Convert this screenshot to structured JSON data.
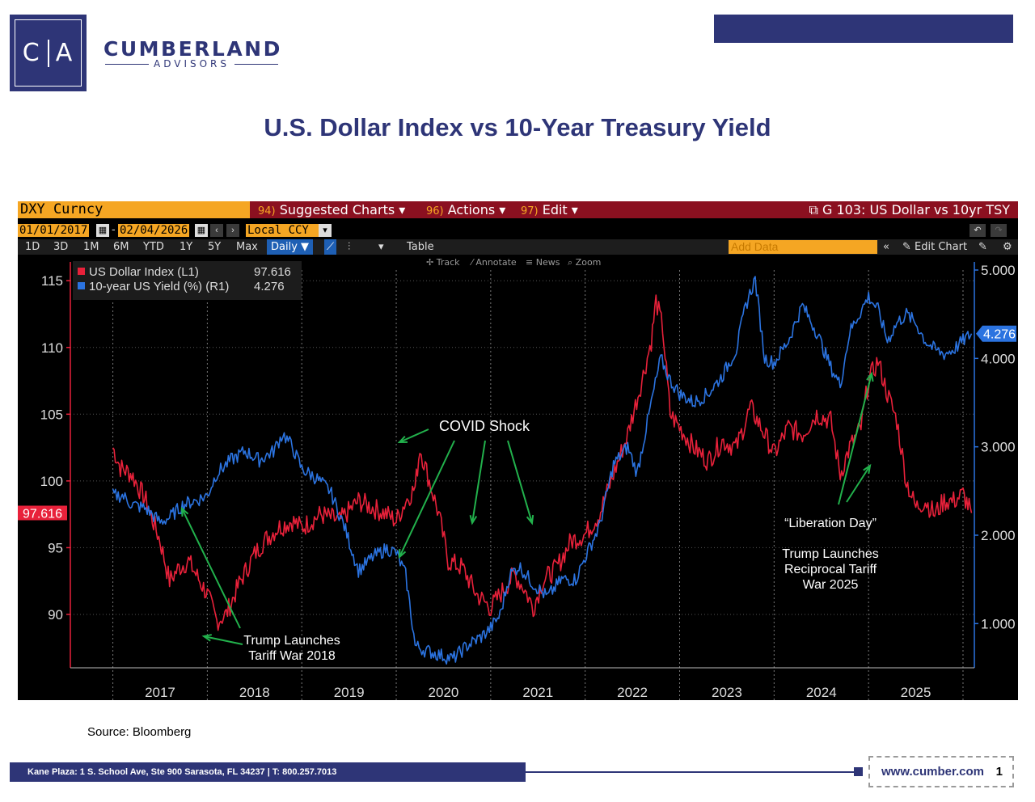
{
  "header": {
    "logo_left": "C",
    "logo_right": "A",
    "brand_name": "CUMBERLAND",
    "brand_sub": "ADVISORS",
    "page_title": "U.S. Dollar Index vs 10-Year Treasury Yield",
    "accent_color": "#2e3577"
  },
  "terminal": {
    "ticker": "DXY Curncy",
    "menu": [
      {
        "num": "94)",
        "label": "Suggested Charts ▾"
      },
      {
        "num": "96)",
        "label": "Actions ▾"
      },
      {
        "num": "97)",
        "label": "Edit ▾"
      }
    ],
    "chart_title": "G 103: US Dollar vs 10yr TSY",
    "start_date": "01/01/2017",
    "end_date": "02/04/2026",
    "currency": "Local CCY",
    "ranges": [
      "1D",
      "3D",
      "1M",
      "6M",
      "YTD",
      "1Y",
      "5Y",
      "Max"
    ],
    "frequency": "Daily ▼",
    "table_label": "Table",
    "add_data_placeholder": "Add Data",
    "edit_chart": "Edit Chart",
    "tools": [
      "Track",
      "Annotate",
      "News",
      "Zoom"
    ]
  },
  "chart_data": {
    "type": "line",
    "title": "U.S. Dollar Index vs 10-Year Treasury Yield",
    "x_ticks": [
      "2017",
      "2018",
      "2019",
      "2020",
      "2021",
      "2022",
      "2023",
      "2024",
      "2025"
    ],
    "left_axis": {
      "ticks": [
        90,
        95,
        100,
        105,
        110,
        115
      ],
      "ylim": [
        86,
        115.8
      ]
    },
    "right_axis": {
      "ticks": [
        "1.000",
        "2.000",
        "3.000",
        "4.000",
        "5.000"
      ],
      "ylim": [
        0.5,
        5.0
      ]
    },
    "legend": [
      {
        "label": "US Dollar Index (L1)",
        "value": "97.616",
        "color": "#e8213a"
      },
      {
        "label": "10-year US Yield (%) (R1)",
        "value": "4.276",
        "color": "#2b73e0"
      }
    ],
    "last_values": {
      "left": "97.616",
      "right": "4.276"
    },
    "series": [
      {
        "name": "US Dollar Index",
        "axis": "left",
        "color": "#e8213a",
        "x": [
          2017.0,
          2017.08,
          2017.2,
          2017.35,
          2017.5,
          2017.6,
          2017.7,
          2017.8,
          2017.92,
          2018.0,
          2018.1,
          2018.2,
          2018.35,
          2018.5,
          2018.6,
          2018.75,
          2018.9,
          2019.0,
          2019.2,
          2019.4,
          2019.6,
          2019.75,
          2019.9,
          2020.0,
          2020.1,
          2020.2,
          2020.25,
          2020.35,
          2020.45,
          2020.55,
          2020.7,
          2020.85,
          2021.0,
          2021.15,
          2021.25,
          2021.35,
          2021.45,
          2021.55,
          2021.7,
          2021.85,
          2022.0,
          2022.15,
          2022.3,
          2022.45,
          2022.6,
          2022.7,
          2022.75,
          2022.82,
          2022.9,
          2023.0,
          2023.15,
          2023.3,
          2023.45,
          2023.6,
          2023.75,
          2023.9,
          2024.0,
          2024.15,
          2024.3,
          2024.45,
          2024.6,
          2024.7,
          2024.8,
          2024.92,
          2025.0,
          2025.1,
          2025.2,
          2025.3,
          2025.4,
          2025.5,
          2025.6,
          2025.7,
          2025.8,
          2025.9,
          2026.0,
          2026.09
        ],
        "values": [
          102.5,
          101.0,
          100.5,
          98.5,
          95.5,
          92.5,
          93.5,
          94.0,
          92.5,
          91.5,
          89.5,
          90.0,
          92.5,
          94.5,
          95.5,
          96.5,
          97.0,
          96.5,
          97.5,
          97.0,
          98.5,
          98.0,
          97.5,
          97.0,
          98.5,
          99.5,
          102.5,
          100.0,
          97.5,
          94.0,
          93.5,
          91.5,
          90.5,
          92.0,
          93.0,
          92.0,
          90.5,
          92.5,
          93.5,
          95.5,
          96.0,
          97.5,
          100.5,
          103.5,
          107.5,
          110.5,
          113.5,
          111.5,
          105.0,
          104.0,
          102.5,
          101.5,
          103.0,
          102.5,
          105.5,
          103.5,
          102.0,
          104.0,
          103.5,
          105.0,
          104.5,
          100.5,
          102.5,
          104.0,
          107.5,
          109.0,
          106.5,
          104.5,
          100.0,
          98.0,
          98.5,
          97.5,
          98.5,
          98.5,
          99.0,
          97.6
        ]
      },
      {
        "name": "10-year US Yield",
        "axis": "right",
        "color": "#2b73e0",
        "x": [
          2017.0,
          2017.1,
          2017.2,
          2017.35,
          2017.5,
          2017.6,
          2017.75,
          2017.9,
          2018.0,
          2018.1,
          2018.25,
          2018.4,
          2018.55,
          2018.7,
          2018.8,
          2018.9,
          2019.0,
          2019.15,
          2019.3,
          2019.45,
          2019.6,
          2019.75,
          2019.9,
          2020.0,
          2020.1,
          2020.17,
          2020.2,
          2020.3,
          2020.45,
          2020.6,
          2020.75,
          2020.9,
          2021.0,
          2021.1,
          2021.2,
          2021.3,
          2021.45,
          2021.6,
          2021.75,
          2021.9,
          2022.0,
          2022.15,
          2022.3,
          2022.45,
          2022.55,
          2022.7,
          2022.8,
          2022.9,
          2023.0,
          2023.15,
          2023.3,
          2023.45,
          2023.6,
          2023.7,
          2023.8,
          2023.9,
          2024.0,
          2024.15,
          2024.3,
          2024.45,
          2024.6,
          2024.7,
          2024.8,
          2024.9,
          2025.0,
          2025.1,
          2025.2,
          2025.3,
          2025.4,
          2025.5,
          2025.6,
          2025.7,
          2025.8,
          2025.9,
          2026.0,
          2026.09
        ],
        "values": [
          2.45,
          2.45,
          2.35,
          2.3,
          2.15,
          2.2,
          2.35,
          2.4,
          2.45,
          2.7,
          2.85,
          2.95,
          2.85,
          2.95,
          3.15,
          3.0,
          2.75,
          2.65,
          2.5,
          2.1,
          1.6,
          1.75,
          1.85,
          1.8,
          1.55,
          1.0,
          0.75,
          0.7,
          0.65,
          0.6,
          0.75,
          0.85,
          0.95,
          1.1,
          1.55,
          1.65,
          1.45,
          1.3,
          1.5,
          1.5,
          1.75,
          2.1,
          2.8,
          3.0,
          2.7,
          3.5,
          4.0,
          3.75,
          3.6,
          3.5,
          3.6,
          3.8,
          4.1,
          4.6,
          4.9,
          4.0,
          3.95,
          4.2,
          4.6,
          4.3,
          3.9,
          3.7,
          4.3,
          4.5,
          4.7,
          4.55,
          4.2,
          4.4,
          4.5,
          4.4,
          4.2,
          4.1,
          4.05,
          4.1,
          4.2,
          4.28
        ]
      }
    ],
    "annotations": [
      {
        "text": "COVID Shock"
      },
      {
        "text": "Trump Launches Tariff War 2018",
        "lines": [
          "Trump Launches",
          "Tariff War 2018"
        ]
      },
      {
        "text": "“Liberation Day”"
      },
      {
        "text": "Trump Launches Reciprocal Tariff War 2025",
        "lines": [
          "Trump Launches",
          "Reciprocal Tariff",
          "War 2025"
        ]
      }
    ]
  },
  "footer": {
    "source": "Source: Bloomberg",
    "address": "Kane Plaza:  1 S. School Ave, Ste 900  Sarasota, FL 34237    |    T: 800.257.7013",
    "url": "www.cumber.com",
    "page": "1"
  }
}
